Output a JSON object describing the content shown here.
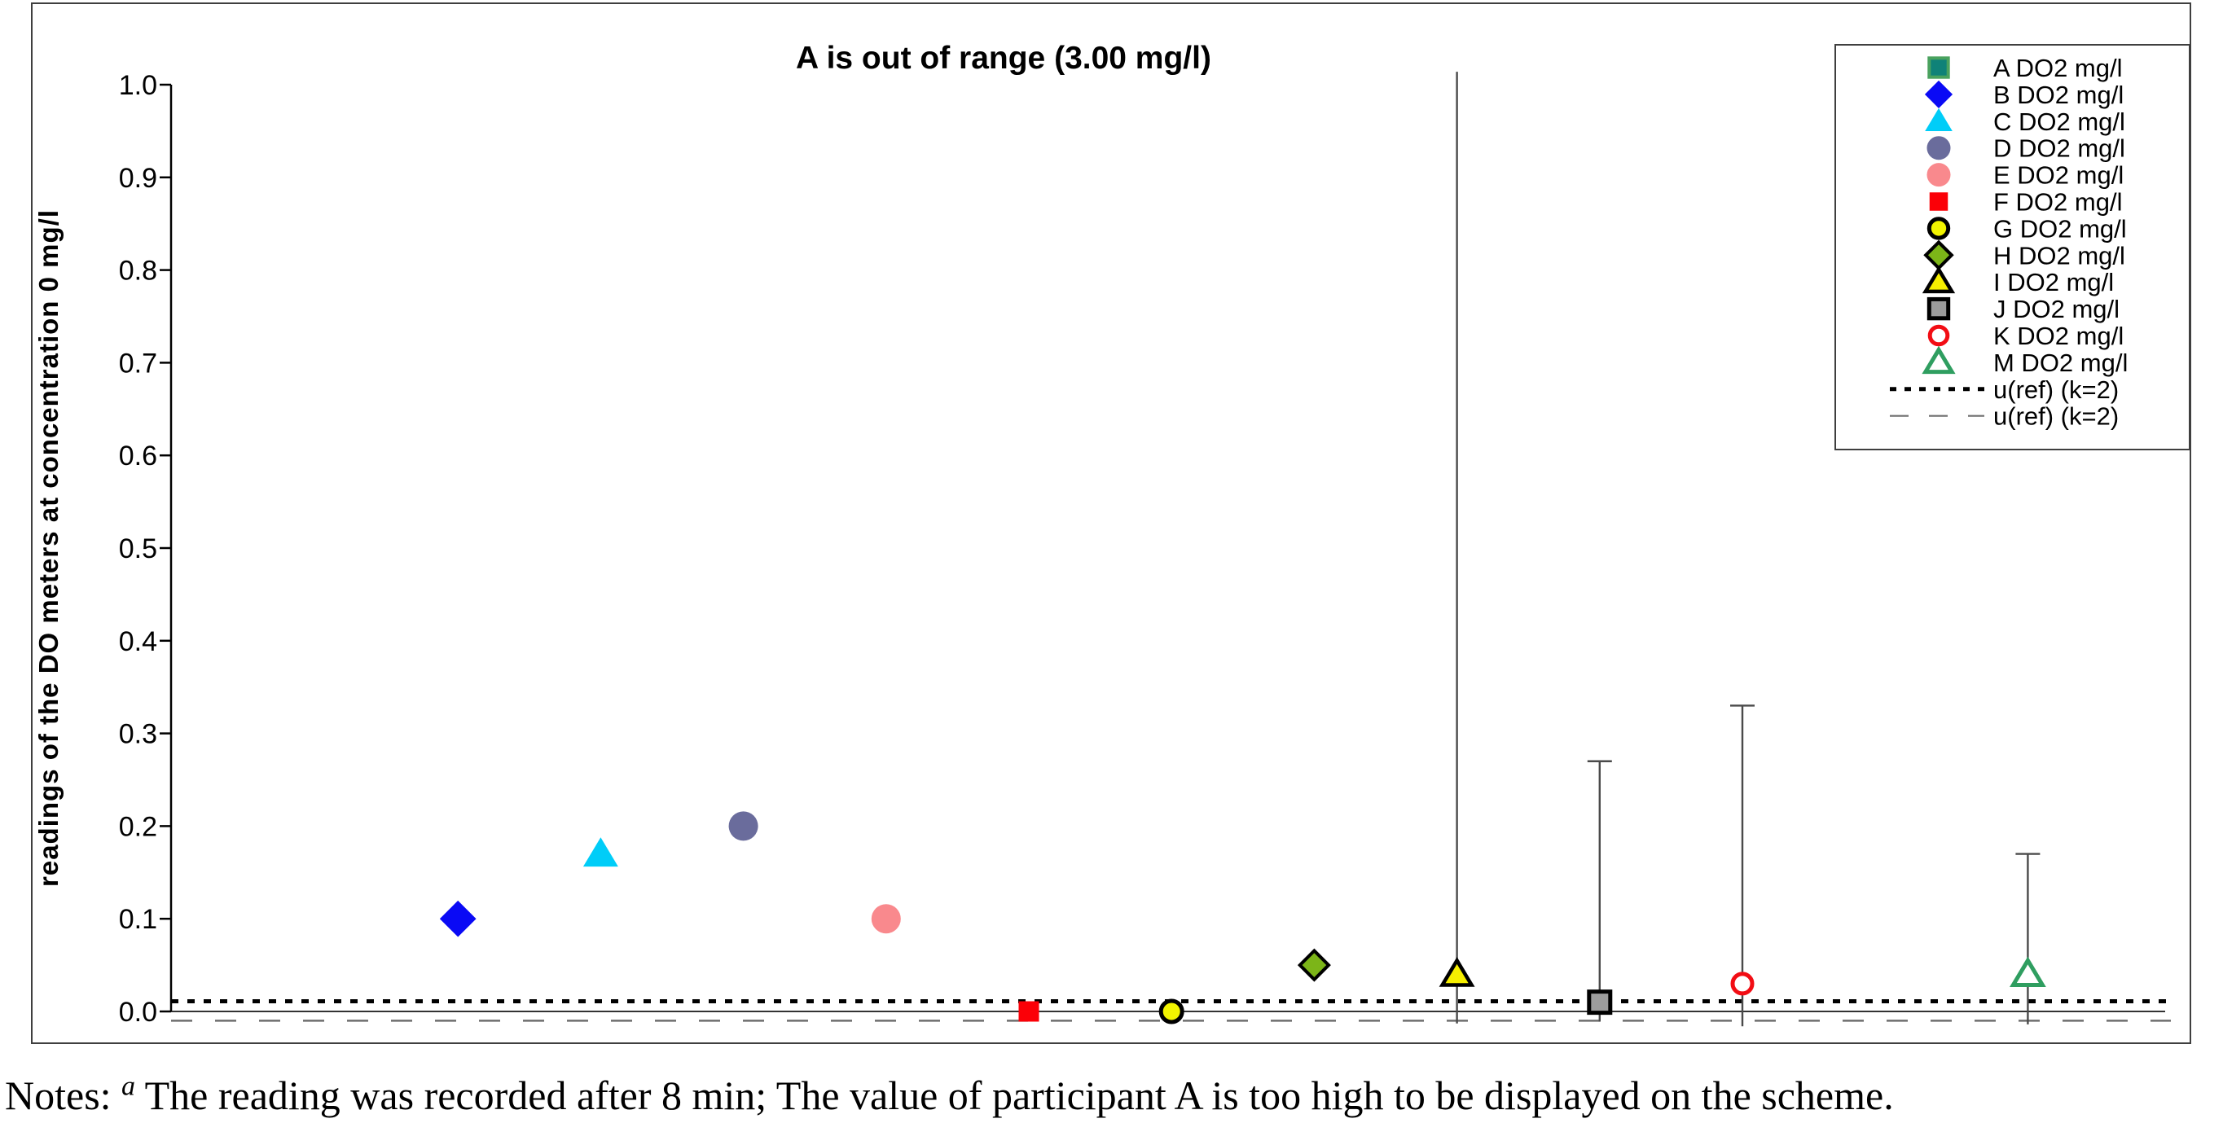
{
  "chart_data": {
    "type": "scatter",
    "title": "A is out of range (3.00 mg/l)",
    "ylabel": "readings of the DO meters at concentration 0 mg/l",
    "xlabel": "",
    "ylim": [
      -0.033,
      1.085
    ],
    "grid": false,
    "legend_position": "top-right",
    "y_ticks": [
      "0.0",
      "0.1",
      "0.2",
      "0.3",
      "0.4",
      "0.5",
      "0.6",
      "0.7",
      "0.8",
      "0.9",
      "1.0"
    ],
    "series": [
      {
        "name": "A",
        "legend_label": "A DO2 mg/l",
        "slot": 0,
        "value": 3.0,
        "plotted": false,
        "note": "out of range (3.00 mg/l), too high to be displayed",
        "marker": {
          "shape": "square",
          "fill": "#0f8278",
          "stroke": "#4aa25e",
          "stroke_width": 4,
          "size": 26
        },
        "error_bar": null
      },
      {
        "name": "B",
        "legend_label": "B DO2 mg/l",
        "slot": 1,
        "value": 0.1,
        "plotted": true,
        "marker": {
          "shape": "diamond",
          "fill": "#0a0af5",
          "stroke": "none",
          "stroke_width": 0,
          "size": 38
        },
        "error_bar": null
      },
      {
        "name": "C",
        "legend_label": "C DO2 mg/l",
        "slot": 2,
        "value": 0.17,
        "plotted": true,
        "marker": {
          "shape": "triangle",
          "fill": "#00cdf8",
          "stroke": "none",
          "stroke_width": 0,
          "size": 37
        },
        "error_bar": null
      },
      {
        "name": "D",
        "legend_label": "D DO2 mg/l",
        "slot": 3,
        "value": 0.2,
        "plotted": true,
        "marker": {
          "shape": "circle",
          "fill": "#6a6c9c",
          "stroke": "none",
          "stroke_width": 0,
          "size": 36
        },
        "error_bar": null
      },
      {
        "name": "E",
        "legend_label": "E DO2 mg/l",
        "slot": 4,
        "value": 0.1,
        "plotted": true,
        "marker": {
          "shape": "circle",
          "fill": "#f9898d",
          "stroke": "none",
          "stroke_width": 0,
          "size": 36
        },
        "error_bar": null
      },
      {
        "name": "F",
        "legend_label": "F DO2 mg/l",
        "slot": 5,
        "value": 0.0,
        "plotted": true,
        "marker": {
          "shape": "square",
          "fill": "#fb0007",
          "stroke": "none",
          "stroke_width": 0,
          "size": 25
        },
        "error_bar": null
      },
      {
        "name": "G",
        "legend_label": "G DO2 mg/l",
        "slot": 6,
        "value": 0.0,
        "plotted": true,
        "marker": {
          "shape": "circle",
          "fill": "#f2f400",
          "stroke": "#000000",
          "stroke_width": 5,
          "size": 26
        },
        "error_bar": null
      },
      {
        "name": "H",
        "legend_label": "H DO2 mg/l",
        "slot": 7,
        "value": 0.05,
        "plotted": true,
        "marker": {
          "shape": "diamond",
          "fill": "#7cb518",
          "stroke": "#000000",
          "stroke_width": 4,
          "size": 30
        },
        "error_bar": null
      },
      {
        "name": "I",
        "legend_label": "I DO2 mg/l",
        "slot": 8,
        "value": 0.04,
        "plotted": true,
        "marker": {
          "shape": "triangle",
          "fill": "#f6ef00",
          "stroke": "#000000",
          "stroke_width": 4.5,
          "size": 31
        },
        "error_bar": {
          "low": -0.013,
          "high": 1.014,
          "cap": false
        }
      },
      {
        "name": "J",
        "legend_label": "J DO2 mg/l",
        "slot": 9,
        "value": 0.01,
        "plotted": true,
        "marker": {
          "shape": "square",
          "fill": "#9c9c9c",
          "stroke": "#000000",
          "stroke_width": 5,
          "size": 26
        },
        "error_bar": {
          "low": -0.011,
          "high": 0.27,
          "cap": true
        }
      },
      {
        "name": "K",
        "legend_label": "K DO2 mg/l",
        "slot": 10,
        "value": 0.03,
        "plotted": true,
        "marker": {
          "shape": "circle",
          "fill": "#ffffff",
          "stroke": "#f20d14",
          "stroke_width": 5,
          "size": 24
        },
        "error_bar": {
          "low": -0.016,
          "high": 0.33,
          "cap": true
        }
      },
      {
        "name": "M",
        "legend_label": "M DO2 mg/l",
        "slot": 12,
        "value": 0.04,
        "plotted": true,
        "marker": {
          "shape": "triangle",
          "fill": "#ffffff",
          "stroke": "#2f9e60",
          "stroke_width": 5,
          "size": 31
        },
        "error_bar": {
          "low": -0.014,
          "high": 0.17,
          "cap": true
        }
      }
    ],
    "ref_lines": [
      {
        "legend_label": "u(ref) (k=2)",
        "value": 0.011,
        "style": "dotted",
        "color": "#000000"
      },
      {
        "legend_label": "u(ref) (k=2)",
        "value": -0.01,
        "style": "dashed",
        "color": "#6e6e6e"
      }
    ]
  },
  "notes": {
    "prefix": "Notes: ",
    "superscript": "a",
    "body": " The reading was recorded after 8 min; The value of participant A is too high to be displayed on the scheme."
  }
}
